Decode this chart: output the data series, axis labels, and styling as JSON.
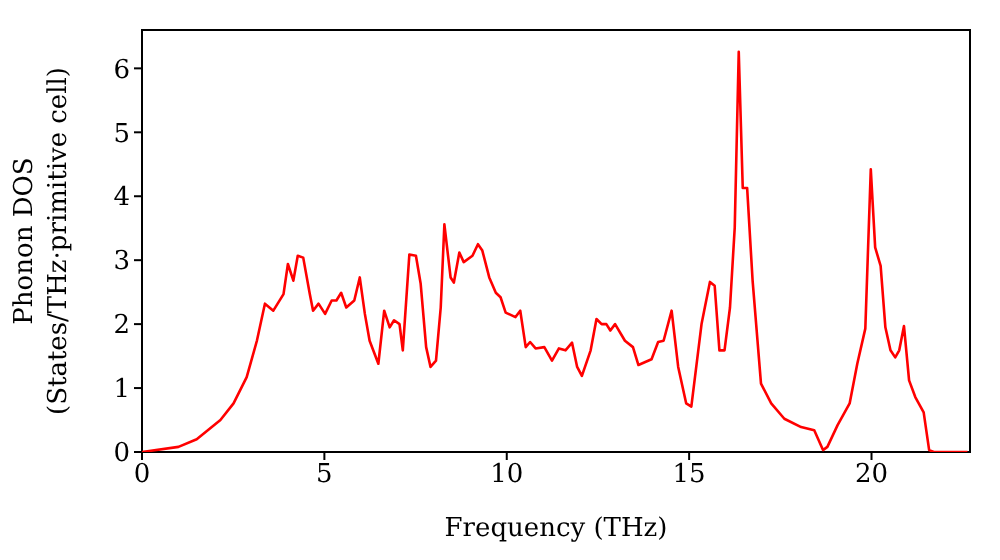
{
  "chart_data": {
    "type": "line",
    "xlabel": "Frequency (THz)",
    "ylabel": "Phonon DOS\n(States/THz·primitive cell)",
    "xlim": [
      0,
      22.7
    ],
    "ylim": [
      0,
      6.6
    ],
    "xticks": [
      0,
      5,
      10,
      15,
      20
    ],
    "yticks": [
      0,
      1,
      2,
      3,
      4,
      5,
      6
    ],
    "grid": false,
    "legend": false,
    "marker": "none",
    "line_style": "solid",
    "x": [
      0,
      1.0,
      1.5,
      2.15,
      2.51,
      2.87,
      3.15,
      3.37,
      3.6,
      3.88,
      4.0,
      4.15,
      4.27,
      4.42,
      4.6,
      4.69,
      4.84,
      5.02,
      5.2,
      5.33,
      5.46,
      5.6,
      5.82,
      5.97,
      6.11,
      6.24,
      6.48,
      6.64,
      6.79,
      6.91,
      7.06,
      7.15,
      7.33,
      7.51,
      7.64,
      7.79,
      7.91,
      8.06,
      8.19,
      8.29,
      8.46,
      8.55,
      8.7,
      8.82,
      9.06,
      9.21,
      9.33,
      9.52,
      9.7,
      9.83,
      9.97,
      10.24,
      10.37,
      10.52,
      10.64,
      10.79,
      11.03,
      11.24,
      11.43,
      11.61,
      11.79,
      11.93,
      12.06,
      12.3,
      12.46,
      12.6,
      12.73,
      12.84,
      12.97,
      13.24,
      13.46,
      13.61,
      13.97,
      14.15,
      14.3,
      14.52,
      14.7,
      14.92,
      15.06,
      15.34,
      15.43,
      15.57,
      15.7,
      15.83,
      15.97,
      16.12,
      16.25,
      16.36,
      16.47,
      16.59,
      16.74,
      16.97,
      17.25,
      17.61,
      18.07,
      18.43,
      18.67,
      18.79,
      19.07,
      19.4,
      19.61,
      19.83,
      19.98,
      20.1,
      20.25,
      20.38,
      20.52,
      20.65,
      20.76,
      20.89,
      21.03,
      21.2,
      21.43,
      21.58,
      21.71,
      22.63
    ],
    "series": [
      {
        "color": "#ff0000",
        "values": [
          0,
          0.08,
          0.2,
          0.5,
          0.76,
          1.17,
          1.74,
          2.32,
          2.21,
          2.47,
          2.94,
          2.68,
          3.07,
          3.04,
          2.47,
          2.21,
          2.32,
          2.16,
          2.37,
          2.37,
          2.49,
          2.26,
          2.37,
          2.73,
          2.16,
          1.74,
          1.38,
          2.21,
          1.95,
          2.06,
          2.0,
          1.59,
          3.09,
          3.07,
          2.63,
          1.64,
          1.33,
          1.43,
          2.26,
          3.56,
          2.73,
          2.65,
          3.12,
          2.97,
          3.07,
          3.25,
          3.15,
          2.73,
          2.49,
          2.42,
          2.18,
          2.11,
          2.21,
          1.64,
          1.72,
          1.62,
          1.64,
          1.43,
          1.62,
          1.59,
          1.71,
          1.33,
          1.19,
          1.59,
          2.08,
          2.0,
          2.0,
          1.9,
          2.0,
          1.74,
          1.64,
          1.36,
          1.45,
          1.72,
          1.74,
          2.21,
          1.33,
          0.76,
          0.71,
          2.0,
          2.26,
          2.66,
          2.6,
          1.59,
          1.59,
          2.26,
          3.51,
          6.26,
          4.13,
          4.13,
          2.68,
          1.07,
          0.76,
          0.52,
          0.39,
          0.34,
          0.03,
          0.08,
          0.42,
          0.76,
          1.38,
          1.93,
          4.42,
          3.2,
          2.91,
          1.95,
          1.59,
          1.48,
          1.59,
          1.97,
          1.12,
          0.86,
          0.62,
          0.03,
          0,
          0
        ]
      }
    ]
  }
}
